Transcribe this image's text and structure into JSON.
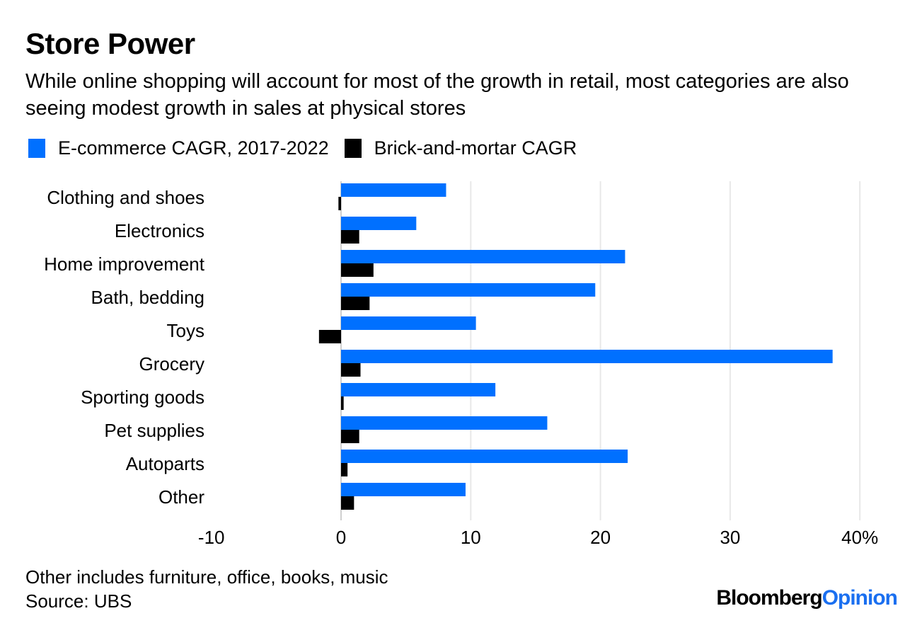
{
  "colors": {
    "ecommerce": "#0070ff",
    "brick": "#000000",
    "grid": "#e8e8e8",
    "brand_accent": "#1a6ff0"
  },
  "header": {
    "title": "Store Power",
    "subtitle": "While online shopping will account for most of the growth in retail, most categories are also seeing modest growth in sales at physical stores"
  },
  "legend": [
    {
      "label": "E-commerce CAGR, 2017-2022",
      "color": "#0070ff"
    },
    {
      "label": "Brick-and-mortar CAGR",
      "color": "#000000"
    }
  ],
  "footer": {
    "note": "Other includes furniture, office, books, music",
    "source": "Source: UBS",
    "brand_part1": "Bloomberg",
    "brand_part2": "Opinion"
  },
  "chart_data": {
    "type": "bar",
    "orientation": "horizontal",
    "title": "Store Power",
    "xlabel": "",
    "ylabel": "",
    "xlim": [
      -10,
      40
    ],
    "x_ticks": [
      -10,
      0,
      10,
      20,
      30,
      40
    ],
    "x_tick_labels": [
      "-10",
      "0",
      "10",
      "20",
      "30",
      "40%"
    ],
    "grid": true,
    "legend_position": "top-left",
    "categories": [
      "Clothing and shoes",
      "Electronics",
      "Home improvement",
      "Bath, bedding",
      "Toys",
      "Grocery",
      "Sporting goods",
      "Pet supplies",
      "Autoparts",
      "Other"
    ],
    "series": [
      {
        "name": "E-commerce CAGR, 2017-2022",
        "values": [
          8.1,
          5.8,
          21.9,
          19.6,
          10.4,
          37.9,
          11.9,
          15.9,
          22.1,
          9.6
        ]
      },
      {
        "name": "Brick-and-mortar CAGR",
        "values": [
          -0.2,
          1.4,
          2.5,
          2.2,
          -1.7,
          1.5,
          0.2,
          1.4,
          0.5,
          1.0
        ]
      }
    ]
  }
}
